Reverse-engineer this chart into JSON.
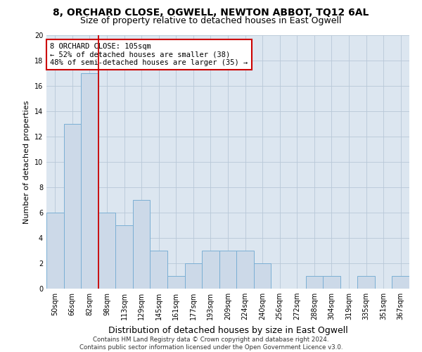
{
  "title_line1": "8, ORCHARD CLOSE, OGWELL, NEWTON ABBOT, TQ12 6AL",
  "title_line2": "Size of property relative to detached houses in East Ogwell",
  "xlabel": "Distribution of detached houses by size in East Ogwell",
  "ylabel": "Number of detached properties",
  "categories": [
    "50sqm",
    "66sqm",
    "82sqm",
    "98sqm",
    "113sqm",
    "129sqm",
    "145sqm",
    "161sqm",
    "177sqm",
    "193sqm",
    "209sqm",
    "224sqm",
    "240sqm",
    "256sqm",
    "272sqm",
    "288sqm",
    "304sqm",
    "319sqm",
    "335sqm",
    "351sqm",
    "367sqm"
  ],
  "values": [
    6,
    13,
    17,
    6,
    5,
    7,
    3,
    1,
    2,
    3,
    3,
    3,
    2,
    0,
    0,
    1,
    1,
    0,
    1,
    0,
    1
  ],
  "bar_color": "#ccd9e8",
  "bar_edge_color": "#7bafd4",
  "vline_x": 3.0,
  "vline_color": "#cc0000",
  "annotation_box_text": "8 ORCHARD CLOSE: 105sqm\n← 52% of detached houses are smaller (38)\n48% of semi-detached houses are larger (35) →",
  "annotation_box_color": "#cc0000",
  "ylim": [
    0,
    20
  ],
  "yticks": [
    0,
    2,
    4,
    6,
    8,
    10,
    12,
    14,
    16,
    18,
    20
  ],
  "grid_color": "#b8c8d8",
  "background_color": "#dce6f0",
  "footer_text": "Contains HM Land Registry data © Crown copyright and database right 2024.\nContains public sector information licensed under the Open Government Licence v3.0.",
  "title_fontsize": 10,
  "subtitle_fontsize": 9,
  "xlabel_fontsize": 9,
  "ylabel_fontsize": 8,
  "tick_fontsize": 7,
  "annotation_fontsize": 7.5
}
